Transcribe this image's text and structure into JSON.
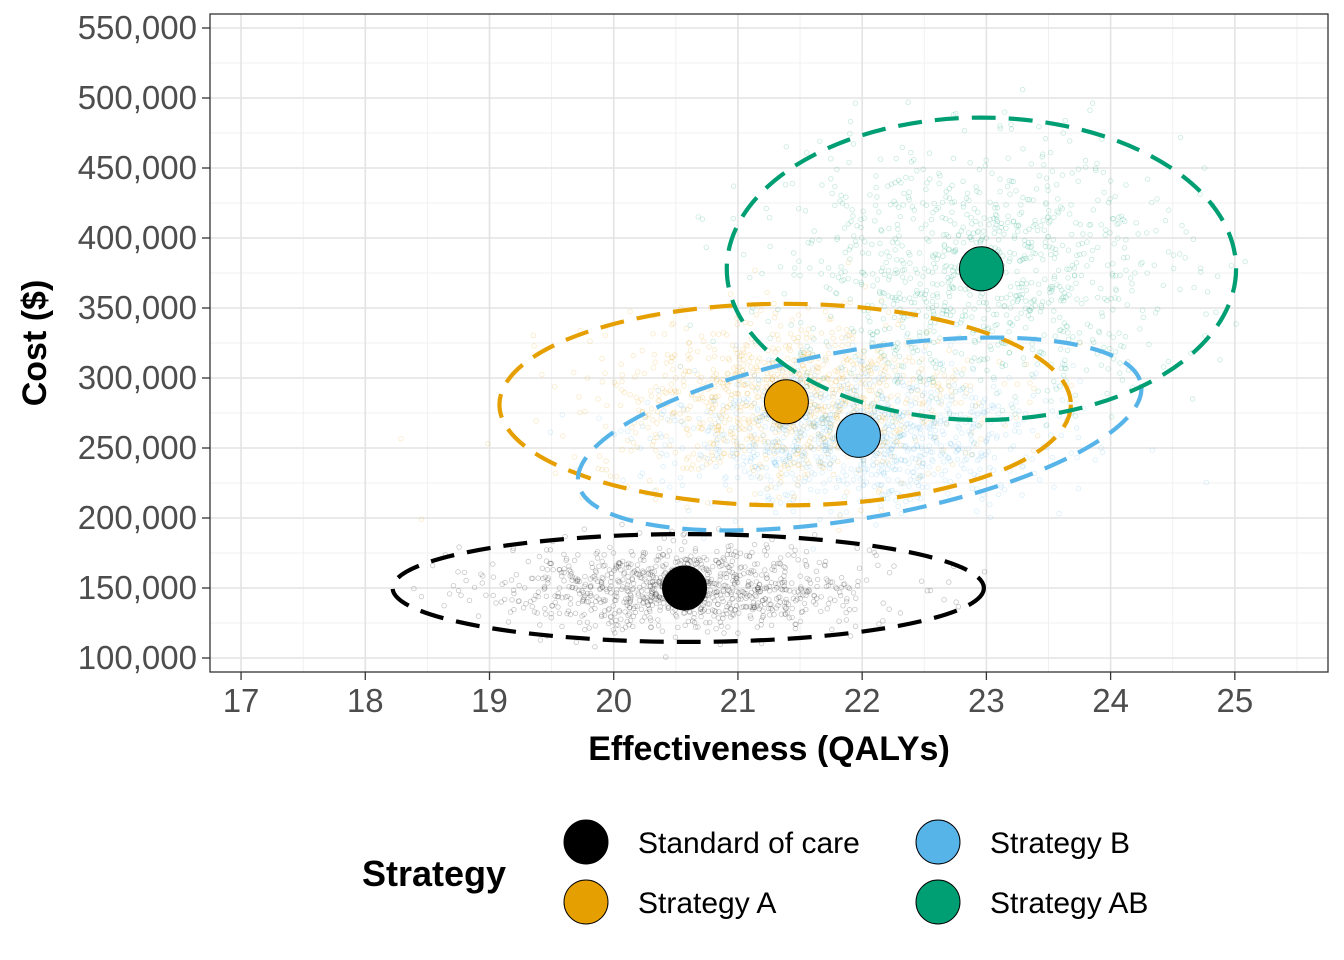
{
  "chart_data": {
    "type": "scatter",
    "xlabel": "Effectiveness (QALYs)",
    "ylabel": "Cost ($)",
    "xlim": [
      16.75,
      25.75
    ],
    "ylim": [
      90000,
      560000
    ],
    "x_ticks": [
      17,
      18,
      19,
      20,
      21,
      22,
      23,
      24,
      25
    ],
    "x_tick_labels": [
      "17",
      "18",
      "19",
      "20",
      "21",
      "22",
      "23",
      "24",
      "25"
    ],
    "y_ticks": [
      100000,
      150000,
      200000,
      250000,
      300000,
      350000,
      400000,
      450000,
      500000,
      550000
    ],
    "y_tick_labels": [
      "100,000",
      "150,000",
      "200,000",
      "250,000",
      "300,000",
      "350,000",
      "400,000",
      "450,000",
      "500,000",
      "550,000"
    ],
    "grid": true,
    "legend": {
      "title": "Strategy",
      "position": "bottom"
    },
    "series": [
      {
        "name": "Standard of care",
        "color": "#000000",
        "mean": {
          "x": 20.57,
          "y": 150000
        },
        "ellipse": {
          "cx": 20.6,
          "cy": 150000,
          "rx": 2.38,
          "ry": 38500,
          "angle_deg": 0
        },
        "cloud": {
          "sd_x": 0.75,
          "sd_y": 15000,
          "count": 1000
        }
      },
      {
        "name": "Strategy A",
        "color": "#E69F00",
        "mean": {
          "x": 21.39,
          "y": 283000
        },
        "ellipse": {
          "cx": 21.38,
          "cy": 281000,
          "rx": 2.3,
          "ry": 72000,
          "angle_deg": 0
        },
        "cloud": {
          "sd_x": 0.75,
          "sd_y": 30000,
          "count": 1000
        }
      },
      {
        "name": "Strategy B",
        "color": "#56B4E9",
        "mean": {
          "x": 21.97,
          "y": 259000
        },
        "ellipse": {
          "cx": 21.98,
          "cy": 260000,
          "rx": 2.3,
          "ry": 60000,
          "angle_deg": -10
        },
        "cloud": {
          "sd_x": 0.75,
          "sd_y": 25000,
          "count": 1000
        }
      },
      {
        "name": "Strategy AB",
        "color": "#009E73",
        "mean": {
          "x": 22.96,
          "y": 378000
        },
        "ellipse": {
          "cx": 22.96,
          "cy": 378000,
          "rx": 2.05,
          "ry": 108000,
          "angle_deg": 0
        },
        "cloud": {
          "sd_x": 0.8,
          "sd_y": 43000,
          "count": 1000
        }
      }
    ]
  }
}
